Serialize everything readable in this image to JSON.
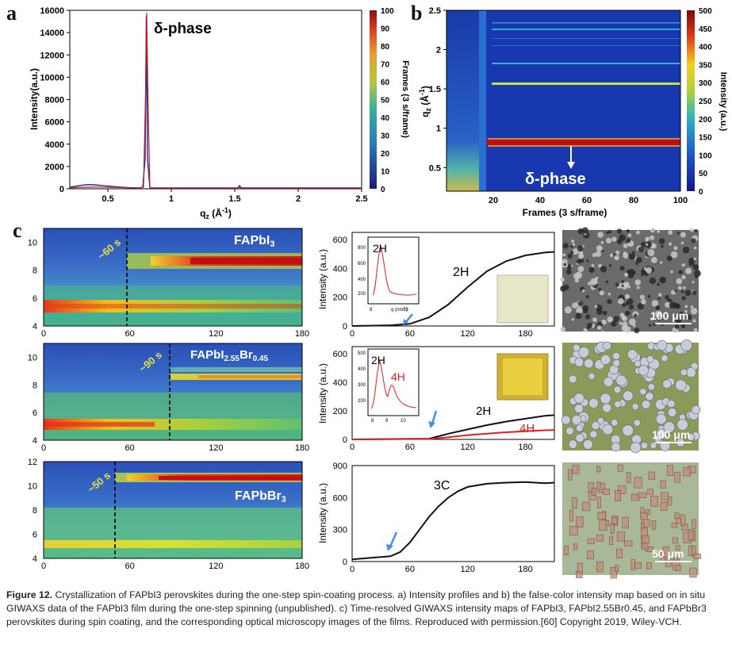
{
  "panels": {
    "a": {
      "letter": "a",
      "peak_label": "δ-phase",
      "y_axis_label": "Intensity(a.u.)",
      "x_axis_label": "qz (Å-1)",
      "colorbar_label": "Frames (3 s/frame)",
      "colorbar_ticks": [
        "100",
        "90",
        "80",
        "70",
        "60",
        "50",
        "40",
        "30",
        "20",
        "10",
        "0"
      ]
    },
    "b": {
      "letter": "b",
      "peak_label": "δ-phase",
      "y_axis_label": "qz (Å-1)",
      "x_axis_label": "Frames (3 s/frame)",
      "colorbar_label": "Intensity (a.u.)",
      "colorbar_ticks": [
        "500",
        "450",
        "400",
        "350",
        "300",
        "250",
        "200",
        "150",
        "100",
        "50",
        "0"
      ]
    },
    "c": {
      "letter": "c",
      "rows": [
        {
          "name": "FAPbI3",
          "time_marker": "~60 s",
          "curve_label": "2H",
          "inset_labels": [
            "2H"
          ],
          "scale_bar": "100 μm"
        },
        {
          "name": "FAPbI2.55Br0.45",
          "time_marker": "~90 s",
          "curve_label": "2H",
          "curve_label_2": "4H",
          "inset_labels": [
            "2H",
            "4H"
          ],
          "scale_bar": "100 μm"
        },
        {
          "name": "FAPbBr3",
          "time_marker": "~50 s",
          "curve_label": "3C",
          "inset_labels": [],
          "scale_bar": "50 μm"
        }
      ],
      "intensity_axis_label": "Intensity (a.u.)",
      "inset_x_label": "q (nm-1)"
    }
  },
  "chart_data": [
    {
      "type": "line",
      "title": "",
      "xlabel": "qz (Å-1)",
      "ylabel": "Intensity(a.u.)",
      "xlim": [
        0.2,
        2.5
      ],
      "ylim": [
        0,
        16000
      ],
      "x_ticks": [
        "0.5",
        "1",
        "1.5",
        "2",
        "2.5"
      ],
      "y_ticks": [
        "0",
        "2000",
        "4000",
        "6000",
        "8000",
        "10000",
        "12000",
        "14000",
        "16000"
      ],
      "peaks": [
        {
          "x": 0.82,
          "y": 15800,
          "label": "δ-phase"
        },
        {
          "x": 1.58,
          "y": 300
        }
      ]
    },
    {
      "type": "heatmap",
      "title": "",
      "xlabel": "Frames (3 s/frame)",
      "ylabel": "qz (Å-1)",
      "xlim": [
        0,
        100
      ],
      "ylim": [
        0.2,
        2.5
      ],
      "x_ticks": [
        "20",
        "40",
        "60",
        "80",
        "100"
      ],
      "y_ticks": [
        "0.5",
        "1",
        "1.5",
        "2",
        "2.5"
      ],
      "colorbar_range": [
        0,
        500
      ],
      "streaks_qz": [
        0.82,
        1.57,
        1.8,
        2.2,
        2.3
      ]
    },
    {
      "type": "heatmap",
      "title": "FAPbI3",
      "xlim": [
        0,
        180
      ],
      "ylim": [
        4,
        11
      ],
      "x_ticks": [
        "0",
        "60",
        "120",
        "180"
      ],
      "y_ticks": [
        "4",
        "6",
        "8",
        "10"
      ]
    },
    {
      "type": "line",
      "title": "",
      "xlim": [
        0,
        210
      ],
      "ylim": [
        0,
        650
      ],
      "x_ticks": [
        "0",
        "60",
        "120",
        "180"
      ],
      "y_ticks": [
        "0",
        "200",
        "400",
        "600"
      ],
      "series": [
        {
          "name": "2H",
          "x": [
            0,
            40,
            60,
            80,
            100,
            120,
            140,
            160,
            180,
            200,
            210
          ],
          "values": [
            0,
            5,
            15,
            60,
            150,
            270,
            380,
            450,
            490,
            510,
            515
          ]
        }
      ]
    },
    {
      "type": "heatmap",
      "title": "FAPbI2.55Br0.45",
      "xlim": [
        0,
        180
      ],
      "ylim": [
        4,
        11
      ],
      "x_ticks": [
        "0",
        "60",
        "120",
        "180"
      ],
      "y_ticks": [
        "4",
        "6",
        "8",
        "10"
      ]
    },
    {
      "type": "line",
      "title": "",
      "xlim": [
        0,
        210
      ],
      "ylim": [
        0,
        650
      ],
      "x_ticks": [
        "0",
        "60",
        "120",
        "180"
      ],
      "y_ticks": [
        "0",
        "200",
        "400",
        "600"
      ],
      "series": [
        {
          "name": "2H",
          "x": [
            0,
            80,
            100,
            120,
            140,
            160,
            180,
            200,
            210
          ],
          "values": [
            0,
            5,
            40,
            70,
            100,
            125,
            145,
            165,
            170
          ]
        },
        {
          "name": "4H",
          "x": [
            0,
            80,
            100,
            120,
            140,
            160,
            180,
            200,
            210
          ],
          "values": [
            0,
            3,
            15,
            30,
            40,
            50,
            58,
            64,
            66
          ]
        }
      ]
    },
    {
      "type": "heatmap",
      "title": "FAPbBr3",
      "xlim": [
        0,
        180
      ],
      "ylim": [
        4,
        12
      ],
      "x_ticks": [
        "0",
        "60",
        "120",
        "180"
      ],
      "y_ticks": [
        "4",
        "6",
        "8",
        "10",
        "12"
      ]
    },
    {
      "type": "line",
      "title": "",
      "xlim": [
        0,
        210
      ],
      "ylim": [
        0,
        900
      ],
      "x_ticks": [
        "0",
        "60",
        "120",
        "180"
      ],
      "y_ticks": [
        "0",
        "300",
        "600",
        "900"
      ],
      "series": [
        {
          "name": "3C",
          "x": [
            0,
            20,
            40,
            50,
            60,
            70,
            80,
            90,
            100,
            110,
            120,
            140,
            160,
            180,
            200,
            210
          ],
          "values": [
            20,
            35,
            50,
            90,
            180,
            300,
            420,
            520,
            600,
            660,
            700,
            730,
            740,
            745,
            735,
            740
          ]
        }
      ]
    }
  ],
  "caption": {
    "label": "Figure 12.",
    "text": "Crystallization of FAPbI3 perovskites during the one-step spin-coating process. a) Intensity profiles and b) the false-color intensity map based on in situ GIWAXS data of the FAPbI3 film during the one-step spinning (unpublished). c) Time-resolved GIWAXS intensity maps of FAPbI3, FAPbI2.55Br0.45, and FAPbBr3 perovskites during spin coating, and the corresponding optical microscopy images of the films. Reproduced with permission.[60] Copyright 2019, Wiley-VCH."
  }
}
